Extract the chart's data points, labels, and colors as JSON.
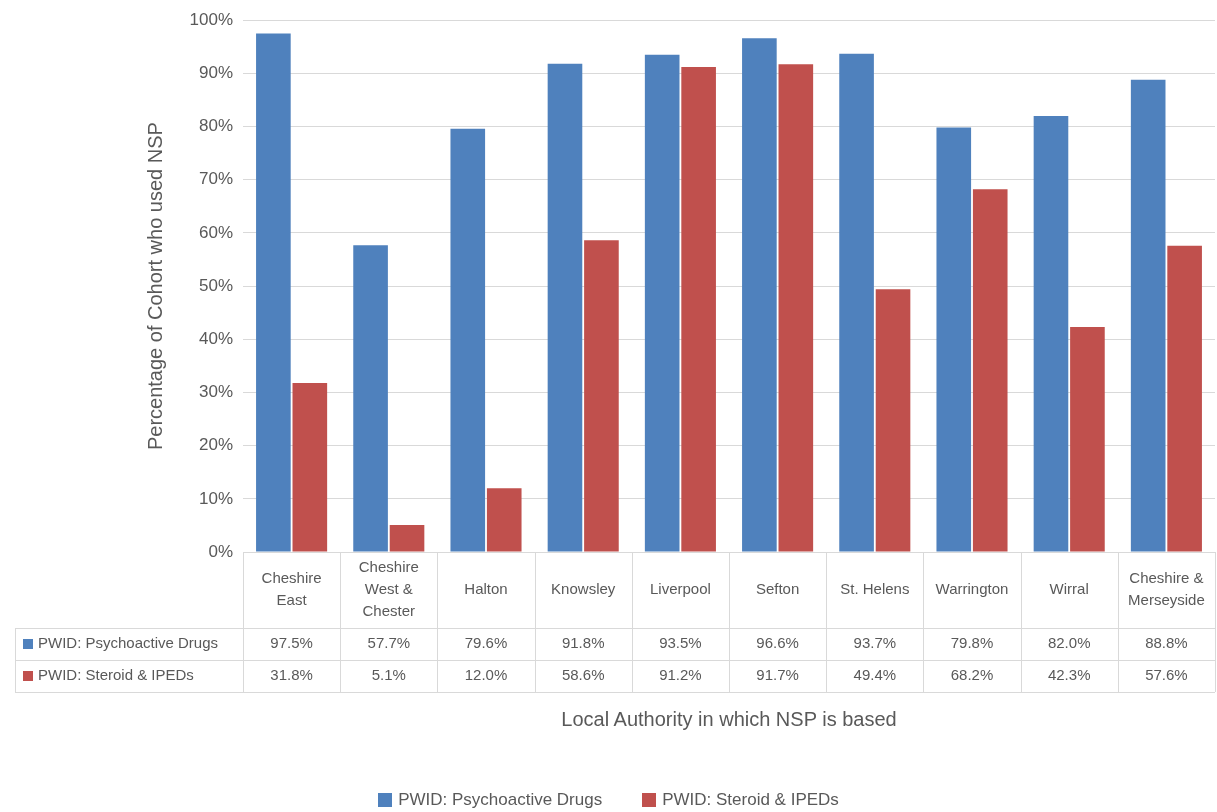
{
  "chart_data": {
    "type": "bar",
    "xlabel": "Local Authority in which NSP is based",
    "ylabel": "Percentage of Cohort who used NSP",
    "categories": [
      "Cheshire East",
      "Cheshire West & Chester",
      "Halton",
      "Knowsley",
      "Liverpool",
      "Sefton",
      "St. Helens",
      "Warrington",
      "Wirral",
      "Cheshire & Merseyside"
    ],
    "series": [
      {
        "name": "PWID: Psychoactive Drugs",
        "color": "#4f81bd",
        "values": [
          97.5,
          57.7,
          79.6,
          91.8,
          93.5,
          96.6,
          93.7,
          79.8,
          82.0,
          88.8
        ],
        "value_labels": [
          "97.5%",
          "57.7%",
          "79.6%",
          "91.8%",
          "93.5%",
          "96.6%",
          "93.7%",
          "79.8%",
          "82.0%",
          "88.8%"
        ]
      },
      {
        "name": "PWID: Steroid & IPEDs",
        "color": "#c0504d",
        "values": [
          31.8,
          5.1,
          12.0,
          58.6,
          91.2,
          91.7,
          49.4,
          68.2,
          42.3,
          57.6
        ],
        "value_labels": [
          "31.8%",
          "5.1%",
          "12.0%",
          "58.6%",
          "91.2%",
          "91.7%",
          "49.4%",
          "68.2%",
          "42.3%",
          "57.6%"
        ]
      }
    ],
    "ylim": [
      0,
      100
    ],
    "yticks": [
      {
        "value": 0,
        "label": "0%"
      },
      {
        "value": 10,
        "label": "10%"
      },
      {
        "value": 20,
        "label": "20%"
      },
      {
        "value": 30,
        "label": "30%"
      },
      {
        "value": 40,
        "label": "40%"
      },
      {
        "value": 50,
        "label": "50%"
      },
      {
        "value": 60,
        "label": "60%"
      },
      {
        "value": 70,
        "label": "70%"
      },
      {
        "value": 80,
        "label": "80%"
      },
      {
        "value": 90,
        "label": "90%"
      },
      {
        "value": 100,
        "label": "100%"
      }
    ],
    "grid": "y",
    "legend": "bottom"
  }
}
